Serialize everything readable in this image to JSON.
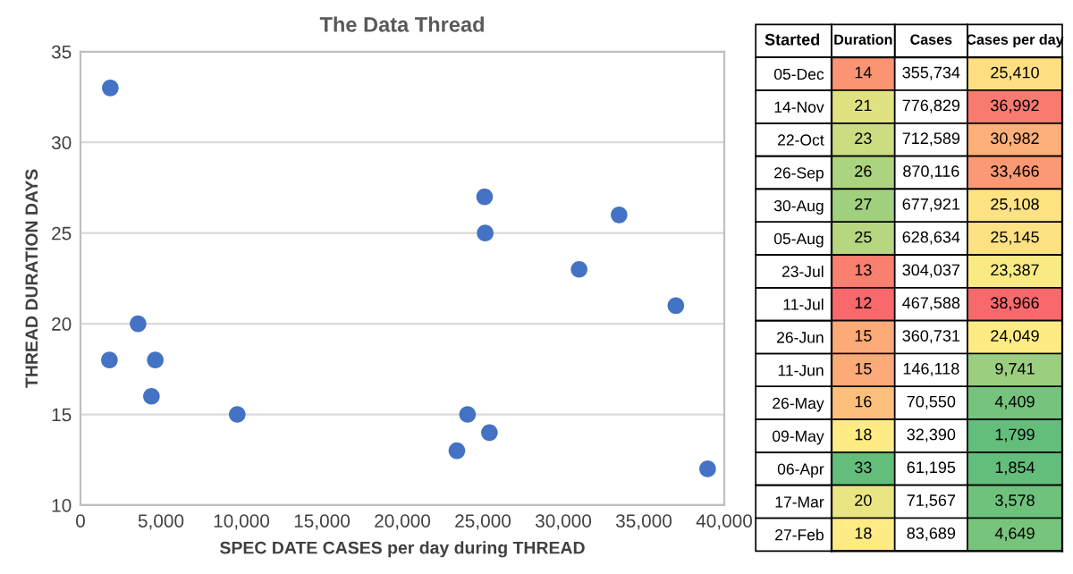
{
  "chart_data": [
    {
      "type": "scatter",
      "title": "The Data Thread",
      "xlabel": "SPEC DATE CASES per day during THREAD",
      "ylabel": "THREAD DURATION DAYS",
      "x": [
        25410,
        36992,
        30982,
        33466,
        25108,
        25145,
        23387,
        38966,
        24049,
        9741,
        4409,
        1799,
        1854,
        3578,
        4649
      ],
      "series": [
        {
          "color": "#4472c4",
          "values": [
            14,
            21,
            23,
            26,
            27,
            25,
            13,
            12,
            15,
            15,
            16,
            18,
            33,
            20,
            18
          ]
        }
      ],
      "xlim": [
        0,
        40000
      ],
      "xticks": [
        {
          "value": 0,
          "label": "0"
        },
        {
          "value": 5000,
          "label": "5,000"
        },
        {
          "value": 10000,
          "label": "10,000"
        },
        {
          "value": 15000,
          "label": "15,000"
        },
        {
          "value": 20000,
          "label": "20,000"
        },
        {
          "value": 25000,
          "label": "25,000"
        },
        {
          "value": 30000,
          "label": "30,000"
        },
        {
          "value": 35000,
          "label": "35,000"
        },
        {
          "value": 40000,
          "label": "40,000"
        }
      ],
      "ylim": [
        10,
        35
      ],
      "yticks": [
        10,
        15,
        20,
        25,
        30,
        35
      ],
      "grid": "y",
      "marker": "circle"
    },
    {
      "type": "heatmap",
      "ylabel": "Started",
      "categories": [
        "Duration",
        "Cases",
        "Cases per day"
      ],
      "y_categories": [
        "05-Dec",
        "14-Nov",
        "22-Oct",
        "26-Sep",
        "30-Aug",
        "05-Aug",
        "23-Jul",
        "11-Jul",
        "26-Jun",
        "11-Jun",
        "26-May",
        "09-May",
        "06-Apr",
        "17-Mar",
        "27-Feb"
      ],
      "cells": [
        [
          14,
          355734,
          25410
        ],
        [
          21,
          776829,
          36992
        ],
        [
          23,
          712589,
          30982
        ],
        [
          26,
          870116,
          33466
        ],
        [
          27,
          677921,
          25108
        ],
        [
          25,
          628634,
          25145
        ],
        [
          13,
          304037,
          23387
        ],
        [
          12,
          467588,
          38966
        ],
        [
          15,
          360731,
          24049
        ],
        [
          15,
          146118,
          9741
        ],
        [
          16,
          70550,
          4409
        ],
        [
          18,
          32390,
          1799
        ],
        [
          33,
          61195,
          1854
        ],
        [
          20,
          71567,
          3578
        ],
        [
          18,
          83689,
          4649
        ]
      ],
      "cell_labels": [
        [
          "14",
          "355,734",
          "25,410"
        ],
        [
          "21",
          "776,829",
          "36,992"
        ],
        [
          "23",
          "712,589",
          "30,982"
        ],
        [
          "26",
          "870,116",
          "33,466"
        ],
        [
          "27",
          "677,921",
          "25,108"
        ],
        [
          "25",
          "628,634",
          "25,145"
        ],
        [
          "13",
          "304,037",
          "23,387"
        ],
        [
          "12",
          "467,588",
          "38,966"
        ],
        [
          "15",
          "360,731",
          "24,049"
        ],
        [
          "15",
          "146,118",
          "9,741"
        ],
        [
          "16",
          "70,550",
          "4,409"
        ],
        [
          "18",
          "32,390",
          "1,799"
        ],
        [
          "33",
          "61,195",
          "1,854"
        ],
        [
          "20",
          "71,567",
          "3,578"
        ],
        [
          "18",
          "83,689",
          "4,649"
        ]
      ]
    }
  ]
}
